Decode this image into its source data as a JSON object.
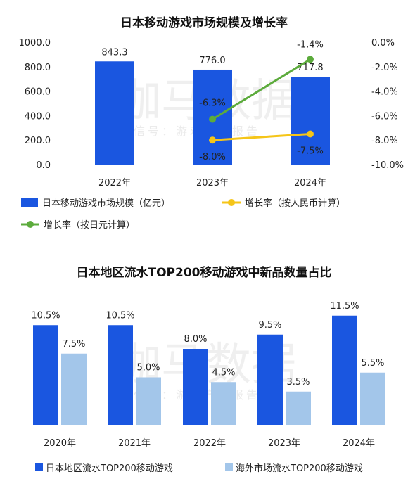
{
  "chart_data": [
    {
      "type": "bar",
      "title": "日本移动游戏市场规模及增长率",
      "categories": [
        "2022年",
        "2023年",
        "2024年"
      ],
      "ylim": [
        0,
        1000
      ],
      "y_ticks": [
        "1000.0",
        "800.0",
        "600.0",
        "400.0",
        "200.0",
        "0.0"
      ],
      "y2lim": [
        -10,
        0
      ],
      "y2_ticks": [
        "0.0%",
        "-2.0%",
        "-4.0%",
        "-6.0%",
        "-8.0%",
        "-10.0%"
      ],
      "bars": {
        "name": "日本移动游戏市场规模（亿元）",
        "values": [
          843.3,
          776.0,
          717.8
        ],
        "labels": [
          "843.3",
          "776.0",
          "717.8"
        ],
        "color": "#1a56e0"
      },
      "lines": [
        {
          "name": "增长率（按人民币计算）",
          "color": "#f5c518",
          "x": [
            "2023年",
            "2024年"
          ],
          "values": [
            -8.0,
            -7.5
          ],
          "labels": [
            "-8.0%",
            "-7.5%"
          ]
        },
        {
          "name": "增长率（按日元计算）",
          "color": "#5cab3c",
          "x": [
            "2023年",
            "2024年"
          ],
          "values": [
            -6.3,
            -1.4
          ],
          "labels": [
            "-6.3%",
            "-1.4%"
          ]
        }
      ],
      "legend_position": "bottom",
      "grid": false
    },
    {
      "type": "bar",
      "title": "日本地区流水TOP200移动游戏中新品数量占比",
      "categories": [
        "2020年",
        "2021年",
        "2022年",
        "2023年",
        "2024年"
      ],
      "ylim": [
        0,
        14
      ],
      "series": [
        {
          "name": "日本地区流水TOP200移动游戏",
          "values": [
            10.5,
            10.5,
            8.0,
            9.5,
            11.5
          ],
          "labels": [
            "10.5%",
            "10.5%",
            "8.0%",
            "9.5%",
            "11.5%"
          ],
          "color": "#1a56e0"
        },
        {
          "name": "海外市场流水TOP200移动游戏",
          "values": [
            7.5,
            5.0,
            4.5,
            3.5,
            5.5
          ],
          "labels": [
            "7.5%",
            "5.0%",
            "4.5%",
            "3.5%",
            "5.5%"
          ],
          "color": "#a3c6ea"
        }
      ],
      "legend_position": "bottom",
      "grid": false
    }
  ],
  "watermark": {
    "main": "伽马数据",
    "sub": "微信号：游戏产业报告"
  }
}
